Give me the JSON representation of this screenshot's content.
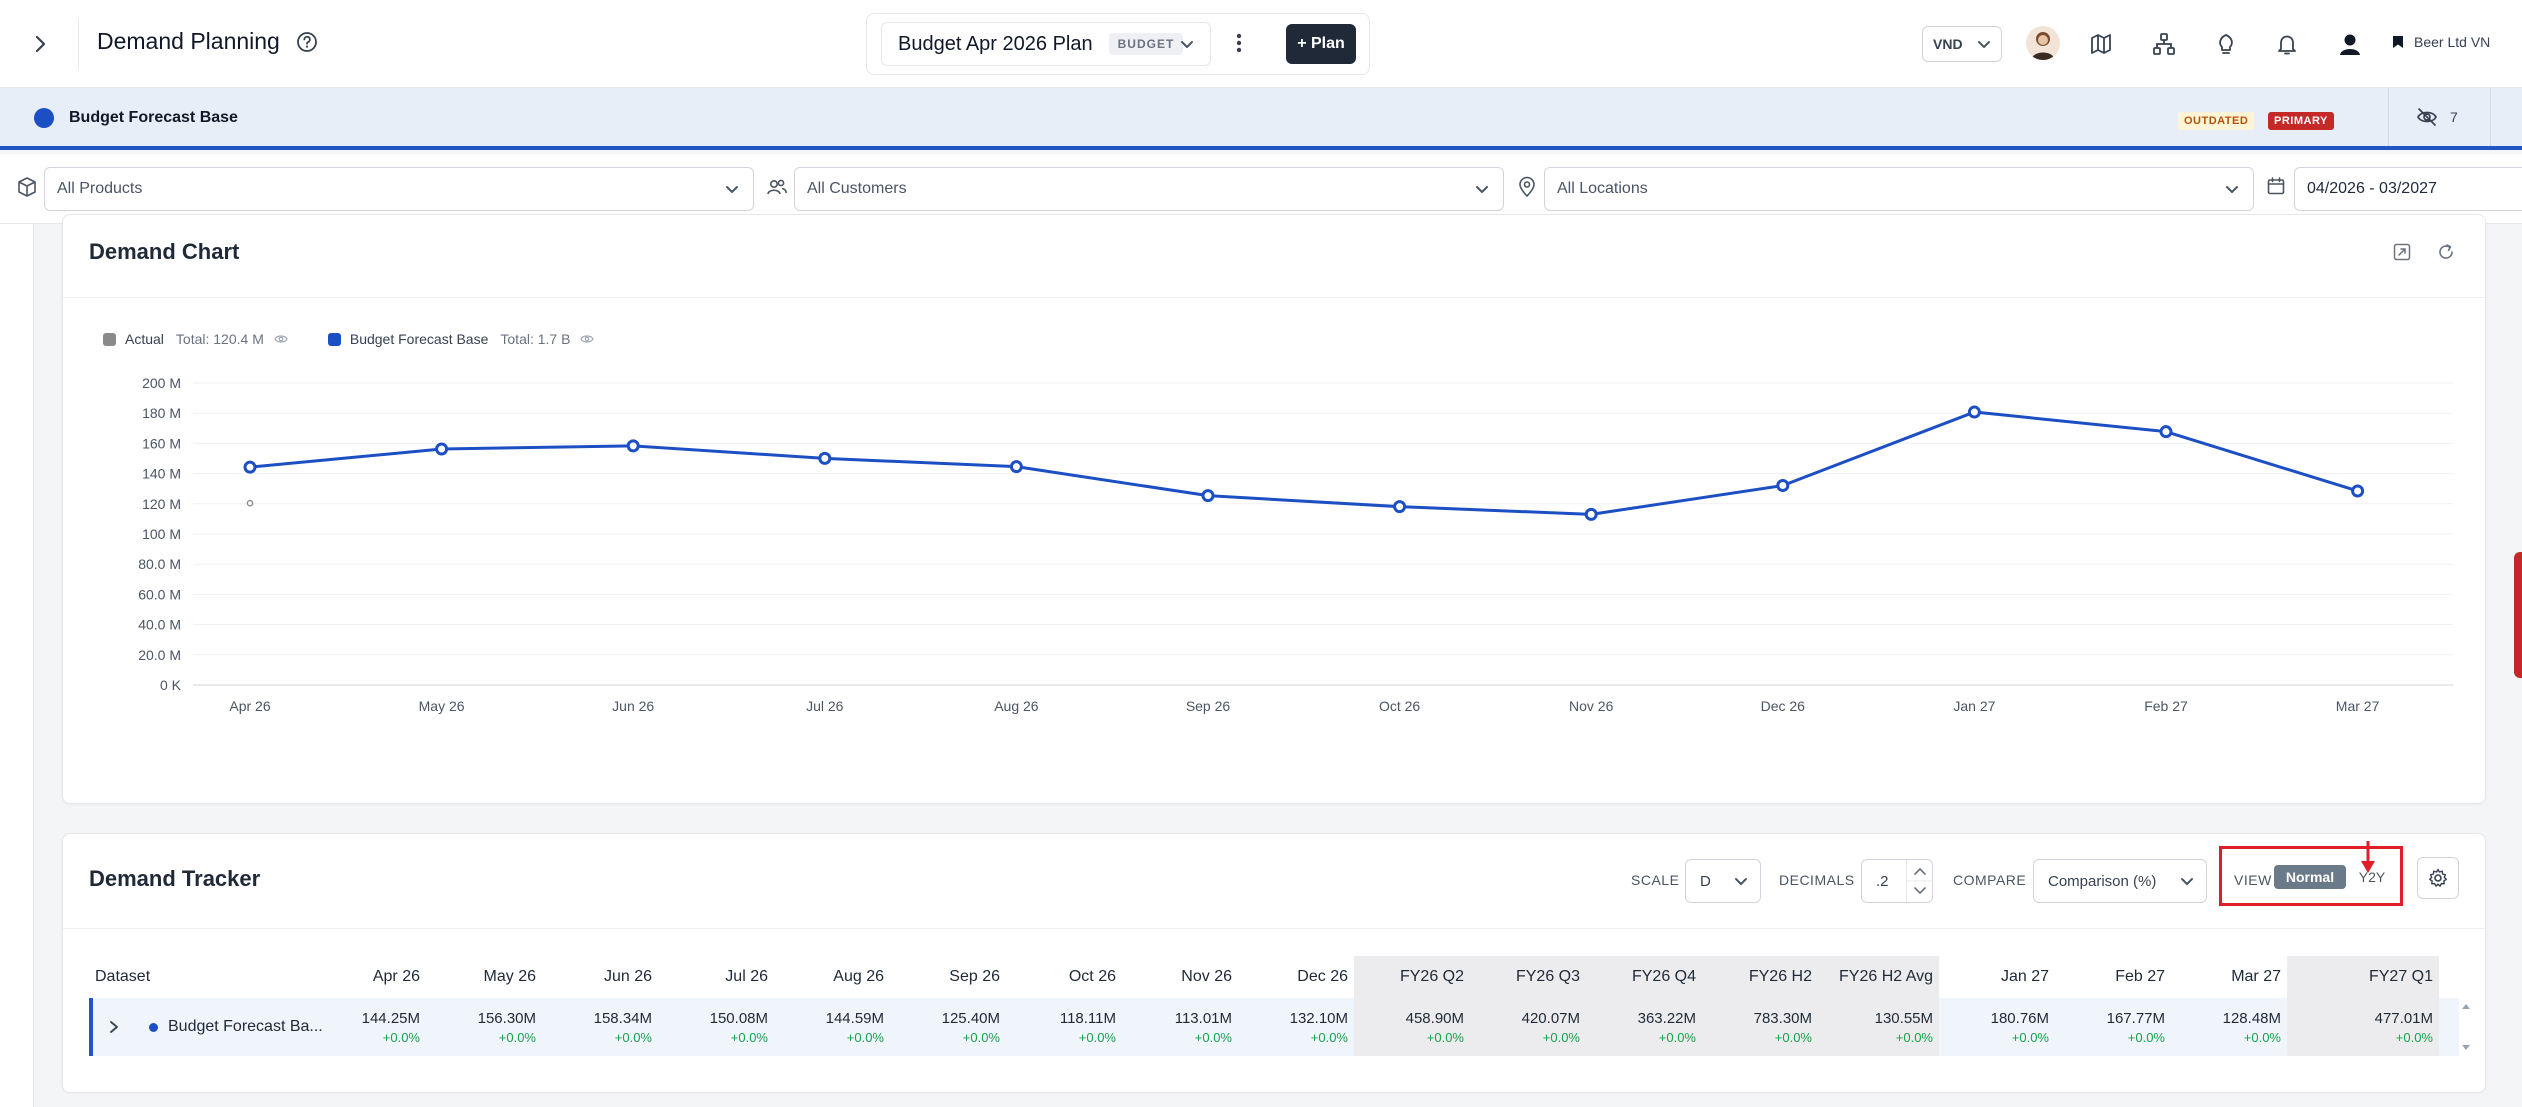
{
  "header": {
    "title": "Demand Planning",
    "plan_name": "Budget Apr 2026 Plan",
    "plan_badge": "BUDGET",
    "plan_button": "+ Plan",
    "currency": "VND",
    "company": "Beer Ltd VN"
  },
  "scenario": {
    "name": "Budget Forecast Base",
    "tag_outdated": "OUTDATED",
    "tag_primary": "PRIMARY",
    "hidden_count": "7",
    "color": "#1d4fc4"
  },
  "filters": {
    "products": "All Products",
    "customers": "All Customers",
    "locations": "All Locations",
    "date_range": "04/2026 - 03/2027"
  },
  "chart_card": {
    "title": "Demand Chart"
  },
  "chart_data": {
    "type": "line",
    "categories": [
      "Apr 26",
      "May 26",
      "Jun 26",
      "Jul 26",
      "Aug 26",
      "Sep 26",
      "Oct 26",
      "Nov 26",
      "Dec 26",
      "Jan 27",
      "Feb 27",
      "Mar 27"
    ],
    "series": [
      {
        "name": "Actual",
        "total": "Total: 120.4 M",
        "color": "#8a8a8a",
        "values": [
          120.4,
          null,
          null,
          null,
          null,
          null,
          null,
          null,
          null,
          null,
          null,
          null
        ]
      },
      {
        "name": "Budget Forecast Base",
        "total": "Total: 1.7 B",
        "color": "#1d4fc4",
        "values": [
          144.25,
          156.3,
          158.34,
          150.08,
          144.59,
          125.4,
          118.11,
          113.01,
          132.1,
          180.76,
          167.77,
          128.48
        ]
      }
    ],
    "yticks": [
      "0 K",
      "20.0 M",
      "40.0 M",
      "60.0 M",
      "80.0 M",
      "100 M",
      "120 M",
      "140 M",
      "160 M",
      "180 M",
      "200 M"
    ],
    "ylim": [
      0,
      200
    ],
    "grid": true,
    "legend": "top-left"
  },
  "tracker": {
    "title": "Demand Tracker",
    "scale_label": "SCALE",
    "scale_value": "D",
    "decimals_label": "DECIMALS",
    "decimals_value": ".2",
    "compare_label": "COMPARE",
    "compare_value": "Comparison (%)",
    "view_label": "VIEW",
    "view_normal": "Normal",
    "view_y2y": "Y2Y",
    "columns": [
      "Dataset",
      "Apr 26",
      "May 26",
      "Jun 26",
      "Jul 26",
      "Aug 26",
      "Sep 26",
      "Oct 26",
      "Nov 26",
      "Dec 26",
      "FY26 Q2",
      "FY26 Q3",
      "FY26 Q4",
      "FY26 H2",
      "FY26 H2 Avg",
      "Jan 27",
      "Feb 27",
      "Mar 27",
      "FY27 Q1"
    ],
    "row": {
      "name": "Budget Forecast Ba...",
      "values": [
        "144.25M",
        "156.30M",
        "158.34M",
        "150.08M",
        "144.59M",
        "125.40M",
        "118.11M",
        "113.01M",
        "132.10M",
        "458.90M",
        "420.07M",
        "363.22M",
        "783.30M",
        "130.55M",
        "180.76M",
        "167.77M",
        "128.48M",
        "477.01M"
      ],
      "changes": [
        "+0.0%",
        "+0.0%",
        "+0.0%",
        "+0.0%",
        "+0.0%",
        "+0.0%",
        "+0.0%",
        "+0.0%",
        "+0.0%",
        "+0.0%",
        "+0.0%",
        "+0.0%",
        "+0.0%",
        "+0.0%",
        "+0.0%",
        "+0.0%",
        "+0.0%",
        "+0.0%"
      ]
    }
  }
}
